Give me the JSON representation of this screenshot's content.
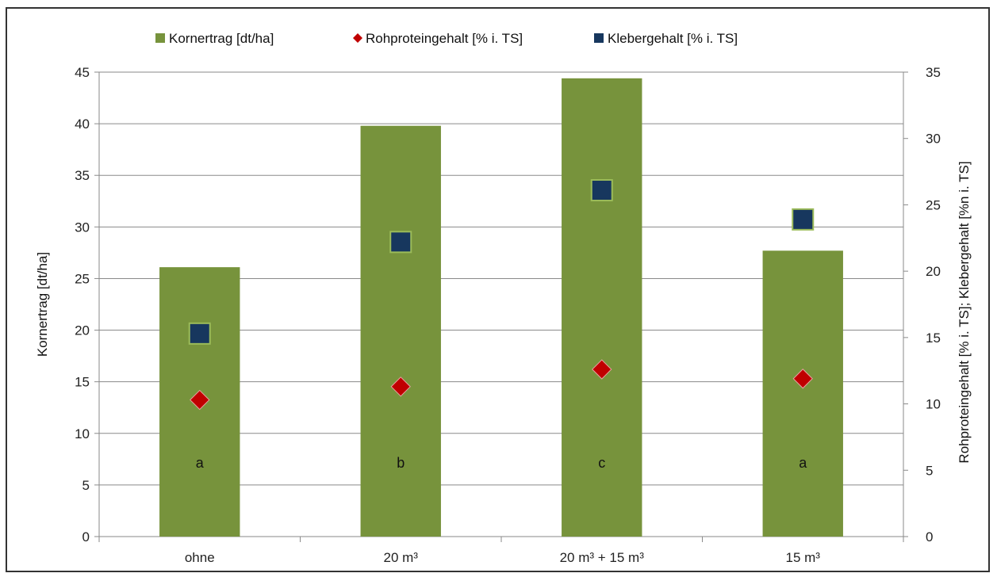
{
  "chart_data": {
    "type": "bar",
    "categories": [
      "ohne",
      "20 m³",
      "20 m³ + 15 m³",
      "15 m³"
    ],
    "series": [
      {
        "name": "Kornertrag [dt/ha]",
        "kind": "bar",
        "axis": "left",
        "values": [
          26.1,
          39.8,
          44.4,
          27.7
        ],
        "color": "#77933C"
      },
      {
        "name": "Rohproteingehalt [% i. TS]",
        "kind": "marker",
        "marker": "diamond",
        "axis": "right",
        "values": [
          10.3,
          11.3,
          12.6,
          11.9
        ],
        "color": "#C00000"
      },
      {
        "name": "Klebergehalt [% i. TS]",
        "kind": "marker",
        "marker": "square",
        "axis": "right",
        "values": [
          15.3,
          22.2,
          26.1,
          23.9
        ],
        "color": "#17375E"
      }
    ],
    "bar_letters": [
      "a",
      "b",
      "c",
      "a"
    ],
    "ylabel": "Kornertrag [dt/ha]",
    "y2label": "Rohproteingehalt [% i. TS]; Klebergehalt [%n i. TS]",
    "ylim": [
      0,
      45
    ],
    "yticks": [
      "0",
      "5",
      "10",
      "15",
      "20",
      "25",
      "30",
      "35",
      "40",
      "45"
    ],
    "y2lim": [
      0,
      35
    ],
    "y2ticks": [
      "0",
      "5",
      "10",
      "15",
      "20",
      "25",
      "30",
      "35"
    ],
    "grid": true,
    "legend_position": "top"
  }
}
